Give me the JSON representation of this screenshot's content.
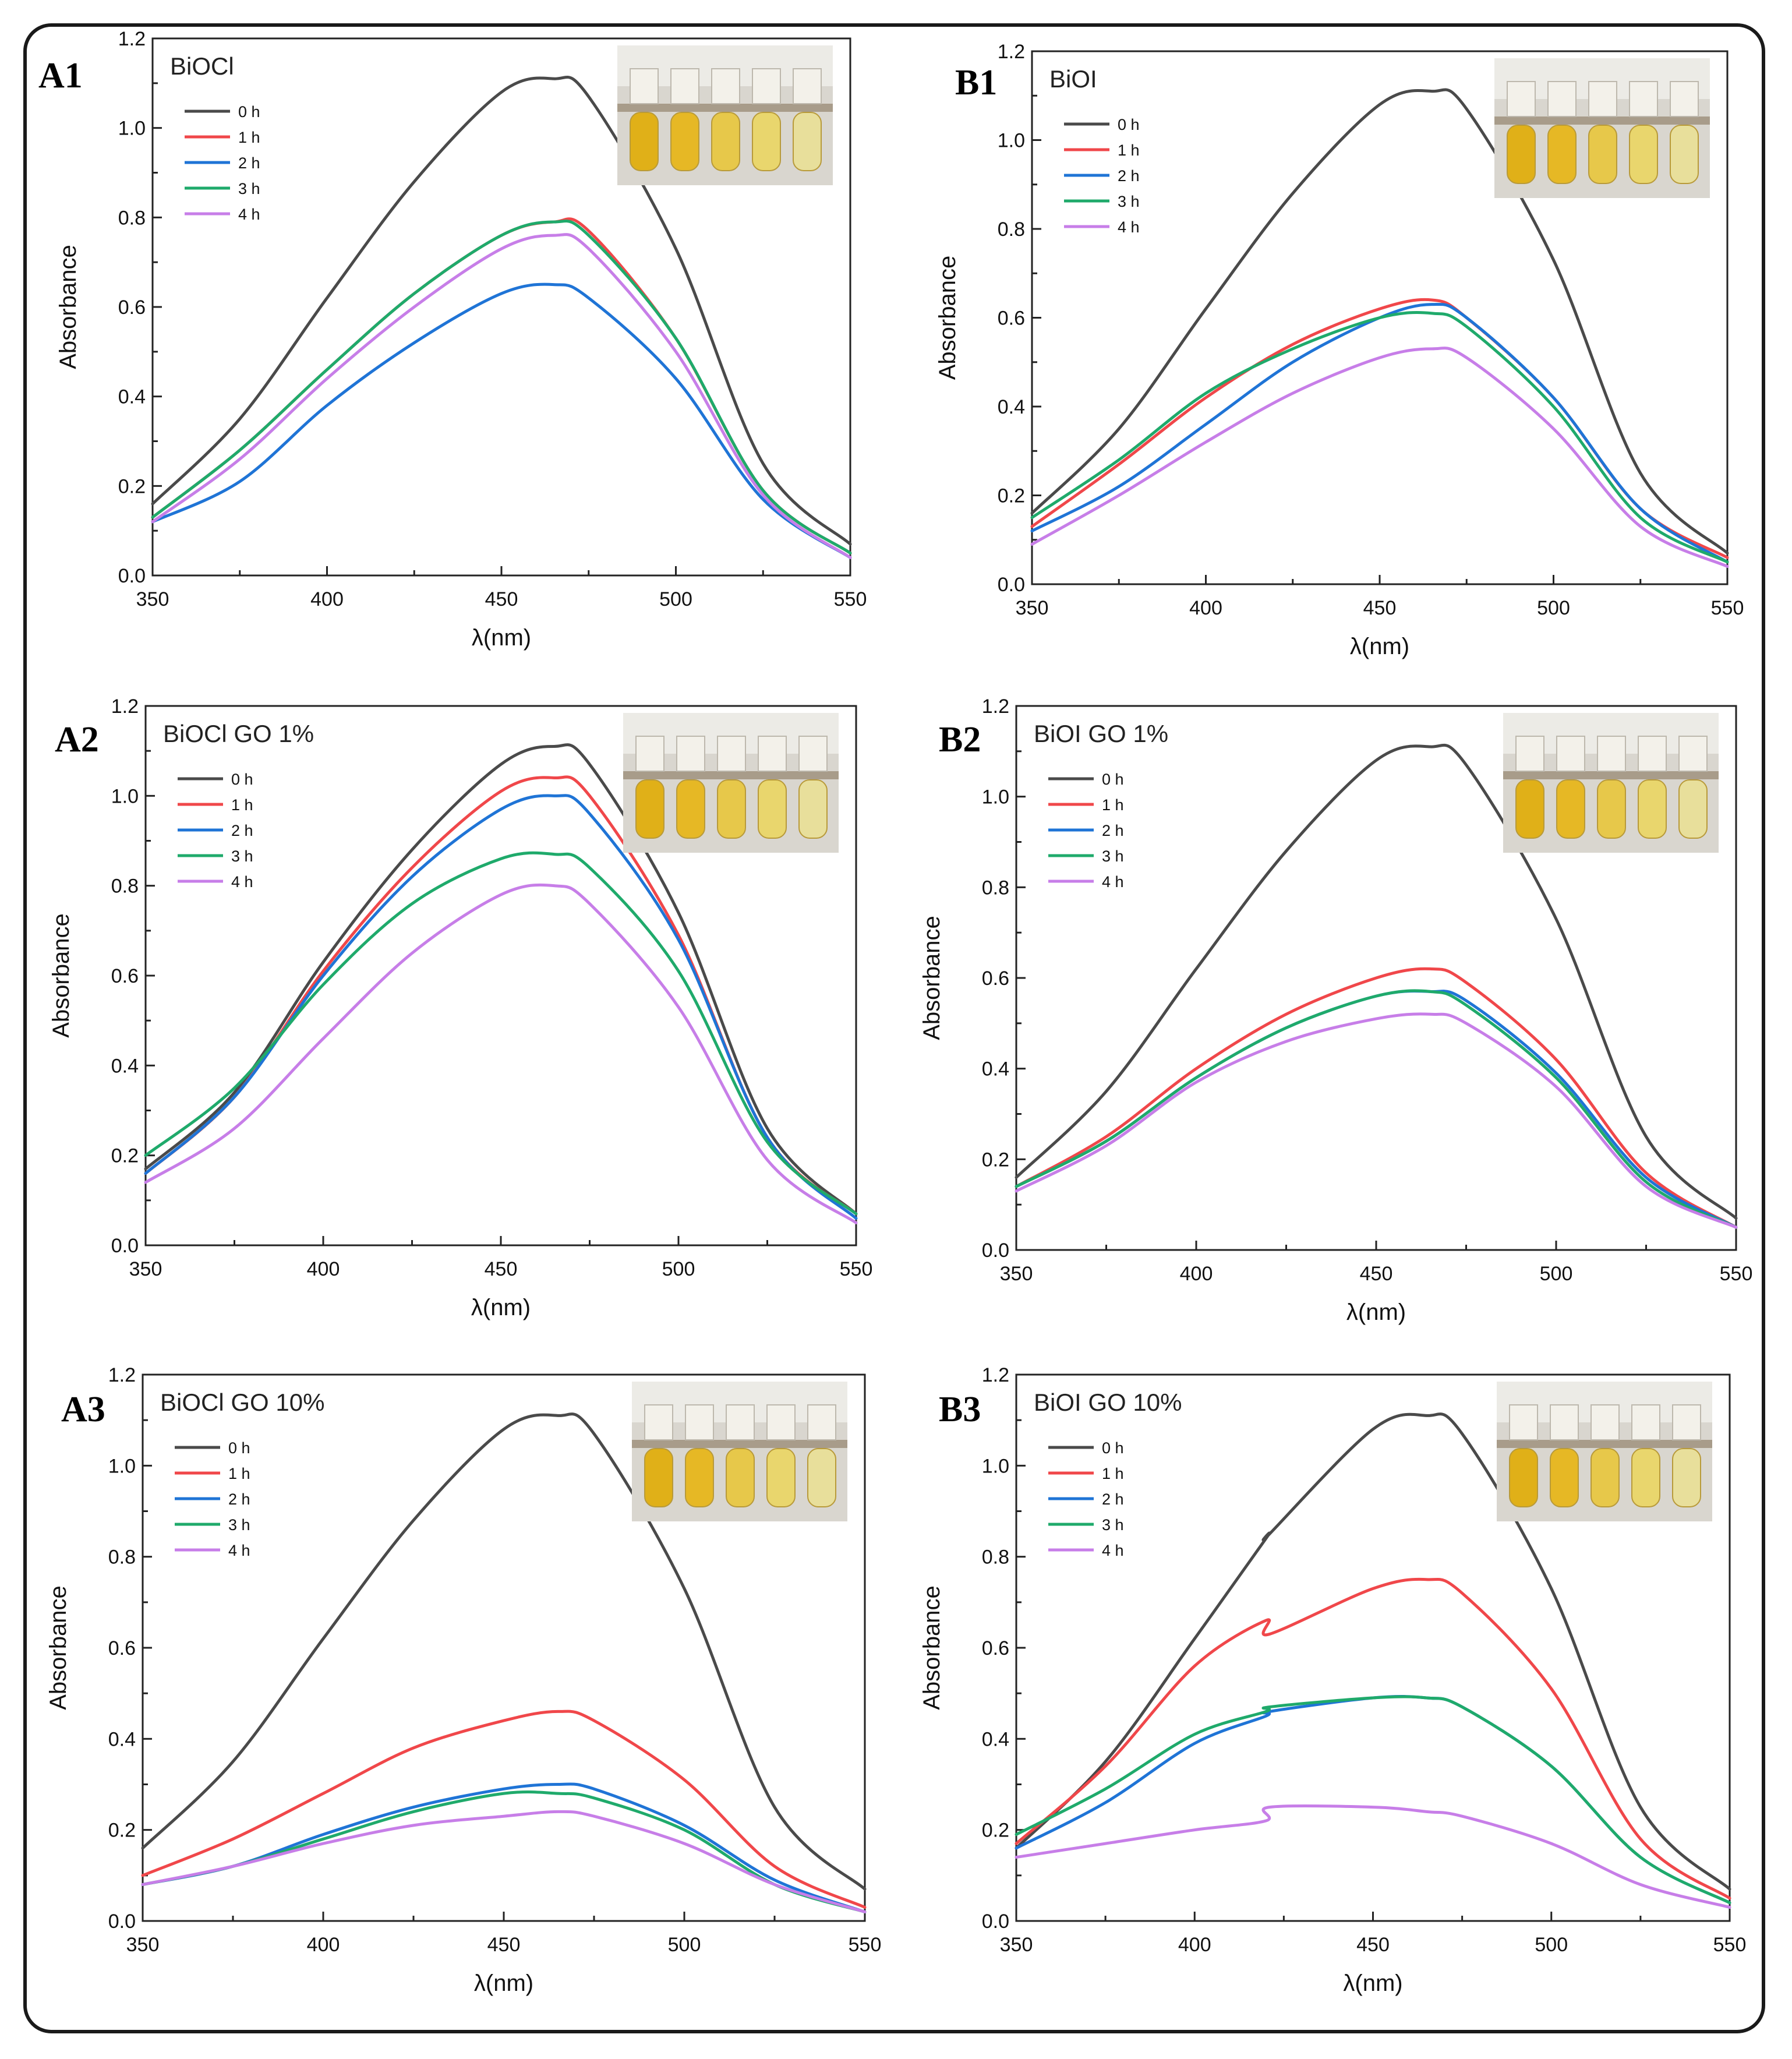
{
  "colors": {
    "0 h": "#4a4a4a",
    "1 h": "#f0474a",
    "2 h": "#1f74d6",
    "3 h": "#1faa6b",
    "4 h": "#c77ee8"
  },
  "chart_data": [
    {
      "id": "A1",
      "panel_label": "A1",
      "title": "BiOCl",
      "type": "line",
      "xlabel": "λ(nm)",
      "ylabel": "Absorbance",
      "xlim": [
        350,
        550
      ],
      "ylim": [
        0.0,
        1.2
      ],
      "xticks": [
        "350",
        "400",
        "450",
        "500",
        "550"
      ],
      "yticks": [
        "0.0",
        "0.2",
        "0.4",
        "0.6",
        "0.8",
        "1.0",
        "1.2"
      ],
      "x": [
        350,
        375,
        400,
        425,
        450,
        465,
        475,
        500,
        525,
        550
      ],
      "series": [
        {
          "name": "0 h",
          "values": [
            0.16,
            0.35,
            0.62,
            0.88,
            1.08,
            1.11,
            1.07,
            0.73,
            0.25,
            0.07
          ]
        },
        {
          "name": "1 h",
          "values": [
            0.13,
            0.28,
            0.46,
            0.63,
            0.76,
            0.79,
            0.77,
            0.53,
            0.19,
            0.05
          ]
        },
        {
          "name": "2 h",
          "values": [
            0.12,
            0.21,
            0.38,
            0.52,
            0.63,
            0.65,
            0.62,
            0.44,
            0.17,
            0.04
          ]
        },
        {
          "name": "3 h",
          "values": [
            0.13,
            0.28,
            0.46,
            0.63,
            0.76,
            0.79,
            0.76,
            0.53,
            0.19,
            0.05
          ]
        },
        {
          "name": "4 h",
          "values": [
            0.12,
            0.26,
            0.44,
            0.6,
            0.73,
            0.76,
            0.73,
            0.5,
            0.18,
            0.04
          ]
        }
      ]
    },
    {
      "id": "B1",
      "panel_label": "B1",
      "title": "BiOI",
      "type": "line",
      "xlabel": "λ(nm)",
      "ylabel": "Absorbance",
      "xlim": [
        350,
        550
      ],
      "ylim": [
        0.0,
        1.2
      ],
      "xticks": [
        "350",
        "400",
        "450",
        "500",
        "550"
      ],
      "yticks": [
        "0.0",
        "0.2",
        "0.4",
        "0.6",
        "0.8",
        "1.0",
        "1.2"
      ],
      "x": [
        350,
        375,
        400,
        425,
        450,
        465,
        475,
        500,
        525,
        550
      ],
      "series": [
        {
          "name": "0 h",
          "values": [
            0.16,
            0.35,
            0.62,
            0.88,
            1.08,
            1.11,
            1.07,
            0.73,
            0.25,
            0.07
          ]
        },
        {
          "name": "1 h",
          "values": [
            0.13,
            0.27,
            0.42,
            0.54,
            0.62,
            0.64,
            0.6,
            0.42,
            0.17,
            0.06
          ]
        },
        {
          "name": "2 h",
          "values": [
            0.12,
            0.22,
            0.36,
            0.5,
            0.6,
            0.63,
            0.6,
            0.42,
            0.17,
            0.05
          ]
        },
        {
          "name": "3 h",
          "values": [
            0.15,
            0.28,
            0.43,
            0.53,
            0.6,
            0.61,
            0.58,
            0.4,
            0.15,
            0.05
          ]
        },
        {
          "name": "4 h",
          "values": [
            0.09,
            0.2,
            0.32,
            0.43,
            0.51,
            0.53,
            0.51,
            0.35,
            0.13,
            0.04
          ]
        }
      ]
    },
    {
      "id": "A2",
      "panel_label": "A2",
      "title": "BiOCl GO 1%",
      "type": "line",
      "xlabel": "λ(nm)",
      "ylabel": "Absorbance",
      "xlim": [
        350,
        550
      ],
      "ylim": [
        0.0,
        1.2
      ],
      "xticks": [
        "350",
        "400",
        "450",
        "500",
        "550"
      ],
      "yticks": [
        "0.0",
        "0.2",
        "0.4",
        "0.6",
        "0.8",
        "1.0",
        "1.2"
      ],
      "x": [
        350,
        375,
        400,
        425,
        450,
        465,
        475,
        500,
        525,
        550
      ],
      "series": [
        {
          "name": "0 h",
          "values": [
            0.17,
            0.34,
            0.63,
            0.88,
            1.07,
            1.11,
            1.07,
            0.74,
            0.26,
            0.07
          ]
        },
        {
          "name": "1 h",
          "values": [
            0.16,
            0.33,
            0.61,
            0.84,
            1.01,
            1.04,
            1.0,
            0.69,
            0.24,
            0.07
          ]
        },
        {
          "name": "2 h",
          "values": [
            0.16,
            0.33,
            0.6,
            0.82,
            0.97,
            1.0,
            0.96,
            0.68,
            0.24,
            0.06
          ]
        },
        {
          "name": "3 h",
          "values": [
            0.2,
            0.35,
            0.58,
            0.76,
            0.86,
            0.87,
            0.84,
            0.61,
            0.23,
            0.07
          ]
        },
        {
          "name": "4 h",
          "values": [
            0.14,
            0.26,
            0.46,
            0.65,
            0.78,
            0.8,
            0.76,
            0.53,
            0.19,
            0.05
          ]
        }
      ]
    },
    {
      "id": "B2",
      "panel_label": "B2",
      "title": "BiOI GO 1%",
      "type": "line",
      "xlabel": "λ(nm)",
      "ylabel": "Absorbance",
      "xlim": [
        350,
        550
      ],
      "ylim": [
        0.0,
        1.2
      ],
      "xticks": [
        "350",
        "400",
        "450",
        "500",
        "550"
      ],
      "yticks": [
        "0.0",
        "0.2",
        "0.4",
        "0.6",
        "0.8",
        "1.0",
        "1.2"
      ],
      "x": [
        350,
        375,
        400,
        425,
        450,
        465,
        475,
        500,
        525,
        550
      ],
      "series": [
        {
          "name": "0 h",
          "values": [
            0.16,
            0.35,
            0.62,
            0.88,
            1.08,
            1.11,
            1.07,
            0.73,
            0.25,
            0.07
          ]
        },
        {
          "name": "1 h",
          "values": [
            0.14,
            0.25,
            0.4,
            0.52,
            0.6,
            0.62,
            0.59,
            0.42,
            0.17,
            0.05
          ]
        },
        {
          "name": "2 h",
          "values": [
            0.14,
            0.24,
            0.38,
            0.49,
            0.56,
            0.57,
            0.55,
            0.39,
            0.16,
            0.05
          ]
        },
        {
          "name": "3 h",
          "values": [
            0.14,
            0.24,
            0.38,
            0.49,
            0.56,
            0.57,
            0.54,
            0.38,
            0.15,
            0.05
          ]
        },
        {
          "name": "4 h",
          "values": [
            0.13,
            0.23,
            0.37,
            0.46,
            0.51,
            0.52,
            0.5,
            0.36,
            0.14,
            0.05
          ]
        }
      ]
    },
    {
      "id": "A3",
      "panel_label": "A3",
      "title": "BiOCl GO 10%",
      "type": "line",
      "xlabel": "λ(nm)",
      "ylabel": "Absorbance",
      "xlim": [
        350,
        550
      ],
      "ylim": [
        0.0,
        1.2
      ],
      "xticks": [
        "350",
        "400",
        "450",
        "500",
        "550"
      ],
      "yticks": [
        "0.0",
        "0.2",
        "0.4",
        "0.6",
        "0.8",
        "1.0",
        "1.2"
      ],
      "x": [
        350,
        375,
        400,
        425,
        450,
        465,
        475,
        500,
        525,
        550
      ],
      "series": [
        {
          "name": "0 h",
          "values": [
            0.16,
            0.35,
            0.62,
            0.88,
            1.08,
            1.11,
            1.07,
            0.73,
            0.25,
            0.07
          ]
        },
        {
          "name": "1 h",
          "values": [
            0.1,
            0.18,
            0.28,
            0.38,
            0.44,
            0.46,
            0.44,
            0.31,
            0.12,
            0.03
          ]
        },
        {
          "name": "2 h",
          "values": [
            0.08,
            0.12,
            0.19,
            0.25,
            0.29,
            0.3,
            0.29,
            0.21,
            0.09,
            0.02
          ]
        },
        {
          "name": "3 h",
          "values": [
            0.08,
            0.12,
            0.18,
            0.24,
            0.28,
            0.28,
            0.27,
            0.2,
            0.08,
            0.02
          ]
        },
        {
          "name": "4 h",
          "values": [
            0.08,
            0.12,
            0.17,
            0.21,
            0.23,
            0.24,
            0.23,
            0.17,
            0.08,
            0.02
          ]
        }
      ]
    },
    {
      "id": "B3",
      "panel_label": "B3",
      "title": "BiOI GO 10%",
      "type": "line",
      "xlabel": "λ(nm)",
      "ylabel": "Absorbance",
      "xlim": [
        350,
        550
      ],
      "ylim": [
        0.0,
        1.2
      ],
      "xticks": [
        "350",
        "400",
        "450",
        "500",
        "550"
      ],
      "yticks": [
        "0.0",
        "0.2",
        "0.4",
        "0.6",
        "0.8",
        "1.0",
        "1.2"
      ],
      "x": [
        350,
        375,
        400,
        420,
        421,
        450,
        465,
        475,
        500,
        525,
        550
      ],
      "series": [
        {
          "name": "0 h",
          "values": [
            0.16,
            0.35,
            0.62,
            0.84,
            0.85,
            1.08,
            1.11,
            1.07,
            0.73,
            0.25,
            0.07
          ]
        },
        {
          "name": "1 h",
          "values": [
            0.17,
            0.34,
            0.56,
            0.66,
            0.63,
            0.73,
            0.75,
            0.72,
            0.51,
            0.18,
            0.05
          ]
        },
        {
          "name": "2 h",
          "values": [
            0.16,
            0.26,
            0.39,
            0.45,
            0.46,
            0.49,
            0.49,
            0.47,
            0.34,
            0.14,
            0.04
          ]
        },
        {
          "name": "3 h",
          "values": [
            0.19,
            0.29,
            0.41,
            0.46,
            0.47,
            0.49,
            0.49,
            0.47,
            0.34,
            0.14,
            0.04
          ]
        },
        {
          "name": "4 h",
          "values": [
            0.14,
            0.17,
            0.2,
            0.22,
            0.25,
            0.25,
            0.24,
            0.23,
            0.17,
            0.08,
            0.03
          ]
        }
      ]
    }
  ]
}
